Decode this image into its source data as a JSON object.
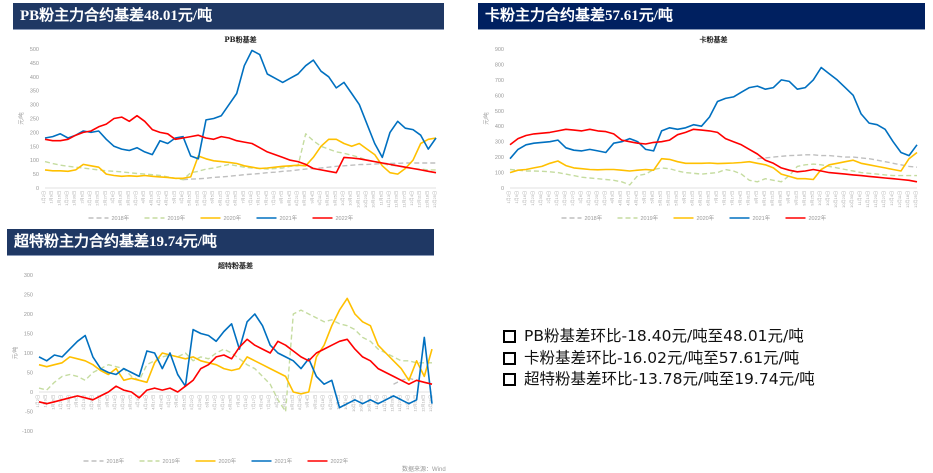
{
  "banners": {
    "pb": "PB粉主力合约基差48.01元/吨",
    "ka": "卡粉主力合约基差57.61元/吨",
    "ct": "超特粉主力合约基差19.74元/吨"
  },
  "summary": {
    "items": [
      "PB粉基差环比-18.40元/吨至48.01元/吨",
      "卡粉基差环比-16.02元/吨至57.61元/吨",
      "超特粉基差环比-13.78元/吨至19.74元/吨"
    ]
  },
  "source_text": "数据来源：Wind",
  "colors": {
    "2018": "#bfbfbf",
    "2019": "#c5dca0",
    "2020": "#ffc000",
    "2021": "#0070c0",
    "2022": "#ff0000",
    "banner_bg": "#1f3864",
    "banner_bg_alt": "#002060"
  },
  "chart_data": [
    {
      "id": "pb",
      "type": "line",
      "title": "PB粉基差",
      "ylabel": "元/吨",
      "xlabel": "",
      "ylim": [
        0,
        500
      ],
      "yticks": [
        0,
        50,
        100,
        150,
        200,
        250,
        300,
        350,
        400,
        450,
        500
      ],
      "x_tick_labels": [
        "1月2日",
        "1月9日",
        "1月16日",
        "1月23日",
        "1月30日",
        "2月6日",
        "2月13日",
        "2月20日",
        "2月27日",
        "3月6日",
        "3月13日",
        "3月20日",
        "3月27日",
        "4月3日",
        "4月10日",
        "4月17日",
        "4月24日",
        "5月1日",
        "5月8日",
        "5月15日",
        "5月22日",
        "5月29日",
        "6月5日",
        "6月12日",
        "6月19日",
        "6月26日",
        "7月3日",
        "7月10日",
        "7月17日",
        "7月24日",
        "7月31日",
        "8月7日",
        "8月14日",
        "8月21日",
        "8月28日",
        "9月4日",
        "9月11日",
        "9月18日",
        "9月25日",
        "10月2日",
        "10月9日",
        "10月16日",
        "10月23日",
        "10月30日",
        "11月6日",
        "11月13日",
        "11月20日",
        "11月27日",
        "12月4日",
        "12月11日",
        "12月18日",
        "12月25日"
      ],
      "legend": [
        "2018年",
        "2019年",
        "2020年",
        "2021年",
        "2022年"
      ],
      "legend_position": "bottom",
      "grid": false,
      "series": [
        {
          "name": "2018年",
          "style": "dash",
          "values": [
            null,
            null,
            null,
            null,
            null,
            null,
            null,
            null,
            null,
            null,
            null,
            null,
            null,
            null,
            null,
            null,
            null,
            null,
            30,
            32,
            33,
            35,
            38,
            40,
            42,
            45,
            48,
            50,
            52,
            55,
            57,
            60,
            62,
            65,
            68,
            70,
            72,
            75,
            78,
            80,
            82,
            84,
            85,
            86,
            88,
            88,
            89,
            90,
            90,
            90,
            90,
            90
          ]
        },
        {
          "name": "2019年",
          "style": "dash",
          "values": [
            95,
            88,
            82,
            78,
            75,
            72,
            68,
            65,
            62,
            60,
            58,
            55,
            52,
            50,
            48,
            45,
            40,
            35,
            30,
            55,
            60,
            68,
            72,
            78,
            85,
            80,
            75,
            72,
            70,
            68,
            70,
            72,
            78,
            80,
            195,
            170,
            150,
            140,
            130,
            125,
            118,
            110,
            100,
            95,
            88,
            82,
            80,
            75,
            70,
            68,
            65,
            65
          ]
        },
        {
          "name": "2020年",
          "style": "solid",
          "values": [
            65,
            62,
            62,
            60,
            65,
            85,
            80,
            75,
            50,
            45,
            42,
            44,
            42,
            45,
            42,
            40,
            38,
            35,
            35,
            40,
            115,
            105,
            98,
            95,
            92,
            88,
            80,
            75,
            70,
            72,
            75,
            78,
            80,
            82,
            80,
            110,
            150,
            175,
            175,
            160,
            150,
            160,
            140,
            120,
            80,
            55,
            50,
            70,
            100,
            160,
            175,
            180
          ]
        },
        {
          "name": "2021年",
          "style": "solid",
          "values": [
            180,
            185,
            195,
            180,
            190,
            205,
            200,
            205,
            175,
            150,
            140,
            135,
            145,
            130,
            120,
            170,
            160,
            180,
            185,
            115,
            105,
            245,
            250,
            260,
            300,
            340,
            440,
            495,
            480,
            410,
            395,
            380,
            395,
            410,
            440,
            460,
            420,
            400,
            360,
            380,
            340,
            300,
            230,
            160,
            110,
            200,
            240,
            215,
            210,
            190,
            140,
            180
          ]
        },
        {
          "name": "2022年",
          "style": "solid",
          "values": [
            175,
            170,
            170,
            175,
            190,
            200,
            205,
            220,
            230,
            250,
            255,
            240,
            260,
            240,
            210,
            200,
            195,
            175,
            180,
            185,
            190,
            180,
            175,
            185,
            180,
            170,
            165,
            160,
            145,
            130,
            120,
            110,
            100,
            95,
            85,
            70,
            65,
            60,
            55,
            110,
            108,
            105,
            100,
            95,
            90,
            85,
            80,
            75,
            70,
            65,
            60,
            55
          ]
        }
      ]
    },
    {
      "id": "ka",
      "type": "line",
      "title": "卡粉基差",
      "ylabel": "元/吨",
      "xlabel": "",
      "ylim": [
        0,
        900
      ],
      "yticks": [
        0,
        100,
        200,
        300,
        400,
        500,
        600,
        700,
        800,
        900
      ],
      "x_tick_labels": [
        "1月2日",
        "1月9日",
        "1月16日",
        "1月23日",
        "1月30日",
        "2月6日",
        "2月13日",
        "2月20日",
        "2月27日",
        "3月6日",
        "3月13日",
        "3月20日",
        "3月27日",
        "4月3日",
        "4月10日",
        "4月17日",
        "4月24日",
        "5月1日",
        "5月8日",
        "5月15日",
        "5月22日",
        "5月29日",
        "6月5日",
        "6月12日",
        "6月19日",
        "6月26日",
        "7月3日",
        "7月10日",
        "7月17日",
        "7月24日",
        "7月31日",
        "8月7日",
        "8月14日",
        "8月21日",
        "8月28日",
        "9月4日",
        "9月11日",
        "9月18日",
        "9月25日",
        "10月2日",
        "10月9日",
        "10月16日",
        "10月23日",
        "10月30日",
        "11月6日",
        "11月13日",
        "11月20日",
        "11月27日",
        "12月4日",
        "12月11日",
        "12月18日",
        "12月25日"
      ],
      "legend": [
        "2018年",
        "2019年",
        "2020年",
        "2021年",
        "2022年"
      ],
      "legend_position": "bottom",
      "grid": false,
      "series": [
        {
          "name": "2018年",
          "style": "dash",
          "values": [
            null,
            null,
            null,
            null,
            null,
            null,
            null,
            null,
            null,
            null,
            null,
            null,
            null,
            null,
            null,
            null,
            null,
            null,
            null,
            null,
            null,
            null,
            null,
            null,
            null,
            null,
            null,
            null,
            null,
            null,
            null,
            190,
            195,
            200,
            205,
            210,
            212,
            215,
            215,
            210,
            210,
            205,
            200,
            200,
            195,
            190,
            180,
            170,
            160,
            150,
            140,
            135
          ]
        },
        {
          "name": "2019年",
          "style": "dash",
          "values": [
            120,
            115,
            110,
            110,
            108,
            105,
            100,
            90,
            80,
            70,
            65,
            60,
            55,
            50,
            40,
            20,
            80,
            90,
            120,
            130,
            125,
            110,
            100,
            95,
            90,
            95,
            100,
            120,
            110,
            90,
            50,
            40,
            60,
            50,
            40,
            80,
            140,
            150,
            155,
            150,
            140,
            130,
            120,
            110,
            100,
            95,
            90,
            85,
            80,
            80,
            80,
            80
          ]
        },
        {
          "name": "2020年",
          "style": "solid",
          "values": [
            100,
            115,
            120,
            130,
            140,
            160,
            175,
            145,
            130,
            125,
            120,
            118,
            120,
            120,
            115,
            110,
            115,
            120,
            115,
            190,
            185,
            170,
            160,
            160,
            160,
            162,
            158,
            160,
            162,
            165,
            170,
            160,
            150,
            130,
            90,
            75,
            60,
            60,
            55,
            120,
            150,
            160,
            170,
            180,
            160,
            150,
            140,
            130,
            120,
            110,
            190,
            230
          ]
        },
        {
          "name": "2021年",
          "style": "solid",
          "values": [
            190,
            250,
            280,
            290,
            295,
            300,
            310,
            260,
            245,
            240,
            250,
            240,
            230,
            290,
            300,
            320,
            300,
            250,
            240,
            370,
            390,
            380,
            390,
            410,
            400,
            460,
            560,
            580,
            590,
            620,
            650,
            660,
            640,
            650,
            700,
            690,
            640,
            650,
            700,
            780,
            740,
            700,
            650,
            600,
            480,
            420,
            410,
            380,
            300,
            230,
            210,
            280
          ]
        },
        {
          "name": "2022年",
          "style": "solid",
          "values": [
            280,
            320,
            340,
            350,
            355,
            360,
            370,
            380,
            375,
            370,
            380,
            370,
            365,
            350,
            310,
            300,
            290,
            285,
            295,
            300,
            310,
            345,
            360,
            380,
            375,
            370,
            360,
            320,
            300,
            280,
            250,
            220,
            180,
            160,
            130,
            115,
            105,
            110,
            120,
            110,
            100,
            95,
            90,
            85,
            80,
            75,
            70,
            65,
            60,
            55,
            50,
            40
          ]
        }
      ]
    },
    {
      "id": "ct",
      "type": "line",
      "title": "超特粉基差",
      "ylabel": "元/吨",
      "xlabel": "",
      "ylim": [
        -100,
        300
      ],
      "yticks": [
        -100,
        -50,
        0,
        50,
        100,
        150,
        200,
        250,
        300
      ],
      "x_tick_labels": [
        "1月2日",
        "1月9日",
        "1月16日",
        "1月23日",
        "1月30日",
        "2月6日",
        "2月13日",
        "2月20日",
        "2月27日",
        "3月6日",
        "3月13日",
        "3月20日",
        "3月27日",
        "4月3日",
        "4月10日",
        "4月17日",
        "4月24日",
        "5月1日",
        "5月8日",
        "5月15日",
        "5月22日",
        "5月29日",
        "6月5日",
        "6月12日",
        "6月19日",
        "6月26日",
        "7月3日",
        "7月10日",
        "7月17日",
        "7月24日",
        "7月31日",
        "8月7日",
        "8月14日",
        "8月21日",
        "8月28日",
        "9月4日",
        "9月11日",
        "9月18日",
        "9月25日",
        "10月2日",
        "10月9日",
        "10月16日",
        "10月23日",
        "10月30日",
        "11月6日",
        "11月13日",
        "11月20日",
        "11月27日",
        "12月4日",
        "12月11日",
        "12月18日",
        "12月25日"
      ],
      "legend": [
        "2018年",
        "2019年",
        "2020年",
        "2021年",
        "2022年"
      ],
      "legend_position": "bottom",
      "grid": false,
      "series": [
        {
          "name": "2018年",
          "style": "dash",
          "values": [
            null,
            null,
            null,
            null,
            null,
            null,
            null,
            null,
            null,
            null,
            null,
            null,
            null,
            null,
            null,
            null,
            null,
            null,
            null,
            null,
            null,
            null,
            null,
            null,
            null,
            null,
            null,
            null,
            null,
            null,
            null,
            null,
            null,
            null,
            null,
            null,
            null,
            null,
            null,
            null,
            null,
            null,
            null,
            null,
            null,
            null,
            20,
            30,
            35,
            30,
            25,
            20
          ]
        },
        {
          "name": "2019年",
          "style": "dash",
          "values": [
            10,
            5,
            25,
            40,
            45,
            40,
            30,
            50,
            60,
            70,
            65,
            60,
            40,
            30,
            70,
            80,
            90,
            95,
            90,
            100,
            80,
            90,
            85,
            100,
            110,
            100,
            85,
            70,
            60,
            40,
            20,
            -20,
            -50,
            200,
            210,
            200,
            190,
            180,
            185,
            175,
            170,
            160,
            140,
            130,
            110,
            100,
            90,
            80,
            80,
            75,
            75,
            75
          ]
        },
        {
          "name": "2020年",
          "style": "solid",
          "values": [
            70,
            65,
            70,
            75,
            90,
            85,
            80,
            70,
            55,
            45,
            60,
            30,
            35,
            30,
            25,
            75,
            100,
            95,
            90,
            85,
            90,
            80,
            75,
            70,
            60,
            55,
            60,
            90,
            80,
            70,
            60,
            50,
            40,
            0,
            -5,
            0,
            90,
            120,
            170,
            210,
            240,
            200,
            180,
            170,
            120,
            100,
            80,
            60,
            30,
            80,
            40,
            110
          ]
        },
        {
          "name": "2021年",
          "style": "solid",
          "values": [
            90,
            80,
            95,
            90,
            110,
            130,
            145,
            90,
            60,
            50,
            45,
            60,
            50,
            40,
            105,
            100,
            60,
            100,
            45,
            15,
            160,
            150,
            145,
            130,
            155,
            175,
            110,
            180,
            200,
            170,
            120,
            100,
            90,
            80,
            60,
            85,
            40,
            20,
            30,
            -40,
            -30,
            -20,
            -30,
            -20,
            -30,
            -20,
            -10,
            -20,
            -30,
            -20,
            140,
            -30
          ]
        },
        {
          "name": "2022年",
          "style": "solid",
          "values": [
            -25,
            -30,
            -25,
            -20,
            -15,
            -10,
            -15,
            -20,
            -10,
            0,
            15,
            5,
            0,
            -15,
            5,
            10,
            5,
            10,
            0,
            15,
            30,
            60,
            70,
            90,
            95,
            85,
            115,
            135,
            120,
            110,
            100,
            130,
            120,
            105,
            90,
            80,
            100,
            110,
            120,
            130,
            135,
            110,
            90,
            80,
            60,
            50,
            40,
            30,
            20,
            30,
            25,
            20
          ]
        }
      ]
    }
  ]
}
